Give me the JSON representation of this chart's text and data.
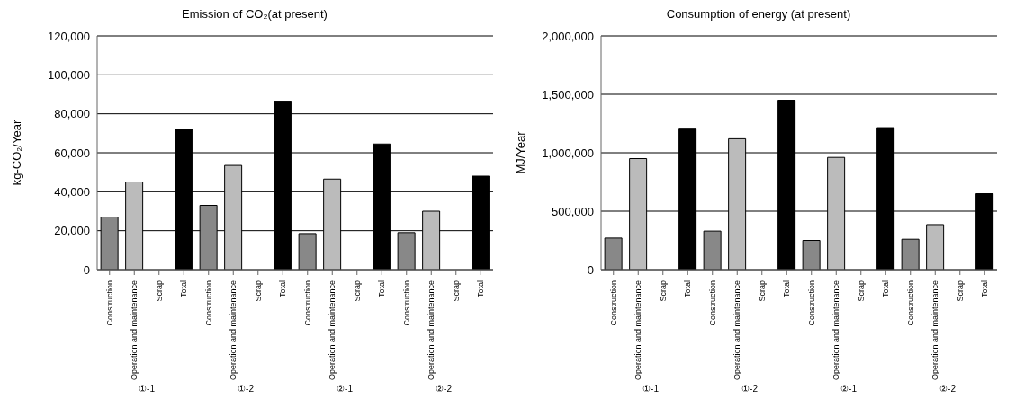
{
  "chart_data": [
    {
      "type": "bar",
      "title": "Emission of CO₂(at present)",
      "ylabel": "kg-CO₂/Year",
      "categories": [
        "Construction",
        "Operation and maintenance",
        "Scrap",
        "Total",
        "Construction",
        "Operation and maintenance",
        "Scrap",
        "Total",
        "Construction",
        "Operation and maintenance",
        "Scrap",
        "Total",
        "Construction",
        "Operation and maintenance",
        "Scrap",
        "Total"
      ],
      "values": [
        27000,
        45000,
        0,
        72000,
        33000,
        53500,
        0,
        86500,
        18500,
        46500,
        0,
        64500,
        19000,
        30000,
        0,
        48000
      ],
      "colors": [
        "#888888",
        "#bbbbbb",
        "#bbbbbb",
        "#000000",
        "#888888",
        "#bbbbbb",
        "#bbbbbb",
        "#000000",
        "#888888",
        "#bbbbbb",
        "#bbbbbb",
        "#000000",
        "#888888",
        "#bbbbbb",
        "#bbbbbb",
        "#000000"
      ],
      "ylim": [
        0,
        120000
      ],
      "yticks": [
        0,
        {
          "value": 20000,
          "label": "20,000"
        },
        {
          "value": 40000,
          "label": "40,000"
        },
        {
          "value": 60000,
          "label": "60,000"
        },
        {
          "value": 80000,
          "label": "80,000"
        },
        {
          "value": 100000,
          "label": "100,000"
        },
        {
          "value": 120000,
          "label": "120,000"
        }
      ],
      "grid": "y",
      "annotations": [
        "①-1",
        "①-2",
        "②-1",
        "②-2"
      ]
    },
    {
      "type": "bar",
      "title": "Consumption of energy (at present)",
      "ylabel": "MJ/Year",
      "categories": [
        "Construction",
        "Operation and maintenance",
        "Scrap",
        "Total",
        "Construction",
        "Operation and maintenance",
        "Scrap",
        "Total",
        "Construction",
        "Operation and maintenance",
        "Scrap",
        "Total",
        "Construction",
        "Operation and maintenance",
        "Scrap",
        "Total"
      ],
      "values": [
        270000,
        950000,
        0,
        1210000,
        330000,
        1120000,
        0,
        1450000,
        250000,
        960000,
        0,
        1215000,
        260000,
        385000,
        0,
        650000
      ],
      "colors": [
        "#888888",
        "#bbbbbb",
        "#bbbbbb",
        "#000000",
        "#888888",
        "#bbbbbb",
        "#bbbbbb",
        "#000000",
        "#888888",
        "#bbbbbb",
        "#bbbbbb",
        "#000000",
        "#888888",
        "#bbbbbb",
        "#bbbbbb",
        "#000000"
      ],
      "ylim": [
        0,
        2000000
      ],
      "yticks": [
        0,
        {
          "value": 500000,
          "label": "500,000"
        },
        {
          "value": 1000000,
          "label": "1,000,000"
        },
        {
          "value": 1500000,
          "label": "1,500,000"
        },
        {
          "value": 2000000,
          "label": "2,000,000"
        }
      ],
      "grid": "y",
      "annotations": [
        "①-1",
        "①-2",
        "②-1",
        "②-2"
      ]
    }
  ]
}
